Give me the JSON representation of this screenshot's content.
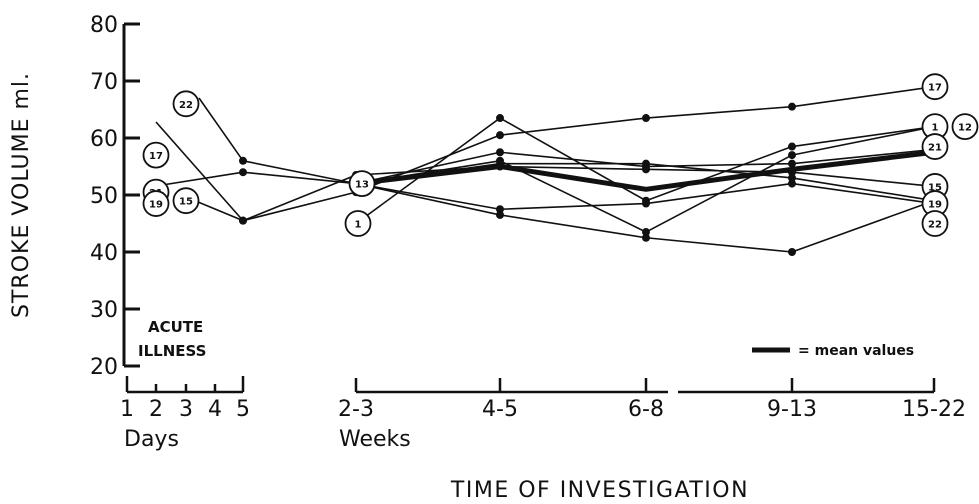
{
  "chart_data": {
    "type": "line",
    "title": "",
    "ylabel": "STROKE VOLUME ml.",
    "xlabel": "TIME OF INVESTIGATION",
    "ylim": [
      20,
      80
    ],
    "yticks": [
      20,
      30,
      40,
      50,
      60,
      70,
      80
    ],
    "grid": false,
    "day_ticks": [
      "1",
      "2",
      "3",
      "4",
      "5"
    ],
    "day_unit_label": "Days",
    "acute_label_line1": "ACUTE",
    "acute_label_line2": "ILLNESS",
    "week_ticks": [
      "2-3",
      "4-5",
      "6-8",
      "9-13",
      "15-22"
    ],
    "week_unit_label": "Weeks",
    "legend": {
      "label": "= mean values",
      "position": "bottom-right"
    },
    "series": [
      {
        "name": "22",
        "points": [
          [
            "5d",
            56
          ],
          [
            "2-3",
            52
          ],
          [
            "4-5",
            47.5
          ],
          [
            "6-8",
            48.5
          ],
          [
            "9-13",
            52
          ],
          [
            "15-22",
            48.5
          ]
        ]
      },
      {
        "name": "17",
        "points": [
          [
            "5d",
            45.5
          ],
          [
            "2-3",
            50.5
          ],
          [
            "4-5",
            60.5
          ],
          [
            "6-8",
            63.5
          ],
          [
            "9-13",
            65.5
          ],
          [
            "15-22",
            69
          ]
        ]
      },
      {
        "name": "21",
        "points": [
          [
            "5d",
            54
          ],
          [
            "2-3",
            52
          ],
          [
            "4-5",
            57.5
          ],
          [
            "6-8",
            55
          ],
          [
            "9-13",
            55.5
          ],
          [
            "15-22",
            58
          ]
        ]
      },
      {
        "name": "15",
        "points": [
          [
            "5d",
            45.5
          ],
          [
            "2-3",
            53.5
          ],
          [
            "4-5",
            55
          ],
          [
            "6-8",
            54.5
          ],
          [
            "9-13",
            54
          ],
          [
            "15-22",
            51.5
          ]
        ]
      },
      {
        "name": "19",
        "points": [
          [
            "2-3",
            52
          ],
          [
            "4-5",
            46.5
          ],
          [
            "6-8",
            42.5
          ],
          [
            "9-13",
            40
          ],
          [
            "15-22",
            49
          ]
        ]
      },
      {
        "name": "1",
        "points": [
          [
            "2-3",
            45
          ],
          [
            "4-5",
            63.5
          ],
          [
            "6-8",
            49
          ],
          [
            "9-13",
            58.5
          ],
          [
            "15-22",
            62
          ]
        ]
      },
      {
        "name": "12",
        "points": [
          [
            "2-3",
            52
          ],
          [
            "4-5",
            56
          ],
          [
            "6-8",
            43.5
          ],
          [
            "9-13",
            57
          ],
          [
            "15-22",
            62
          ]
        ]
      },
      {
        "name": "13",
        "points": [
          [
            "2-3",
            52
          ],
          [
            "4-5",
            55.5
          ],
          [
            "6-8",
            55.5
          ],
          [
            "9-13",
            53
          ],
          [
            "15-22",
            49
          ]
        ]
      },
      {
        "name": "mean values",
        "points": [
          [
            "2-3",
            52
          ],
          [
            "4-5",
            55
          ],
          [
            "6-8",
            51
          ],
          [
            "9-13",
            54.5
          ],
          [
            "15-22",
            57.5
          ]
        ]
      }
    ],
    "initial_values": [
      {
        "name": "22",
        "day": 3,
        "value": 66
      },
      {
        "name": "17",
        "day": 2,
        "value": 57
      },
      {
        "name": "21",
        "day": 2,
        "value": 50.5
      },
      {
        "name": "19",
        "day": 2,
        "value": 48.5
      },
      {
        "name": "15",
        "day": 3,
        "value": 49
      }
    ]
  }
}
